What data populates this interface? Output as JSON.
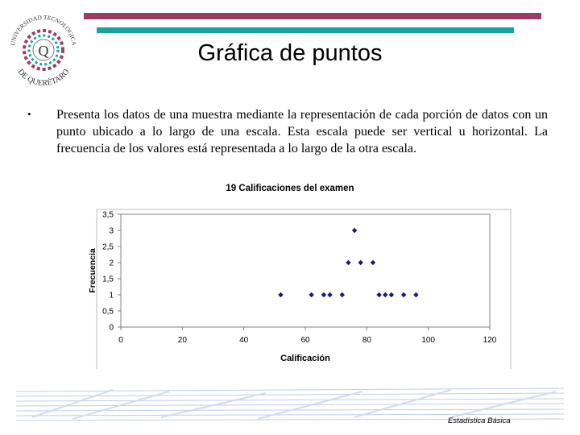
{
  "header": {
    "title": "Gráfica de puntos",
    "logo_text_top": "UNIVERSIDAD TECNOLÓGICA",
    "logo_text_bottom": "DE QUERÉTARO",
    "logo_letter": "Q",
    "accent_color": "#9c3b64",
    "secondary_color": "#17a3a4"
  },
  "body": {
    "bullet": "•",
    "paragraph": "Presenta los datos de una muestra mediante la representación de cada porción de datos con un punto ubicado a lo largo de una escala. Esta escala puede ser vertical u horizontal. La frecuencia de los valores está representada a lo largo de la otra escala."
  },
  "footer": {
    "text": "Estadística Básica"
  },
  "chart_data": {
    "type": "scatter",
    "title": "19 Calificaciones del examen",
    "xlabel": "Calificación",
    "ylabel": "Frecuencia",
    "xlim": [
      0,
      120
    ],
    "ylim": [
      0,
      3.5
    ],
    "xticks": [
      "0",
      "20",
      "40",
      "60",
      "80",
      "100",
      "120"
    ],
    "yticks": [
      "0",
      "0,5",
      "1",
      "1,5",
      "2",
      "2,5",
      "3",
      "3,5"
    ],
    "grid": false,
    "marker_color": "#1a1a6e",
    "points": [
      {
        "x": 52,
        "y": 1
      },
      {
        "x": 62,
        "y": 1
      },
      {
        "x": 66,
        "y": 1
      },
      {
        "x": 68,
        "y": 1
      },
      {
        "x": 72,
        "y": 1
      },
      {
        "x": 74,
        "y": 2
      },
      {
        "x": 76,
        "y": 3
      },
      {
        "x": 78,
        "y": 2
      },
      {
        "x": 82,
        "y": 2
      },
      {
        "x": 84,
        "y": 1
      },
      {
        "x": 86,
        "y": 1
      },
      {
        "x": 88,
        "y": 1
      },
      {
        "x": 92,
        "y": 1
      },
      {
        "x": 96,
        "y": 1
      }
    ]
  }
}
